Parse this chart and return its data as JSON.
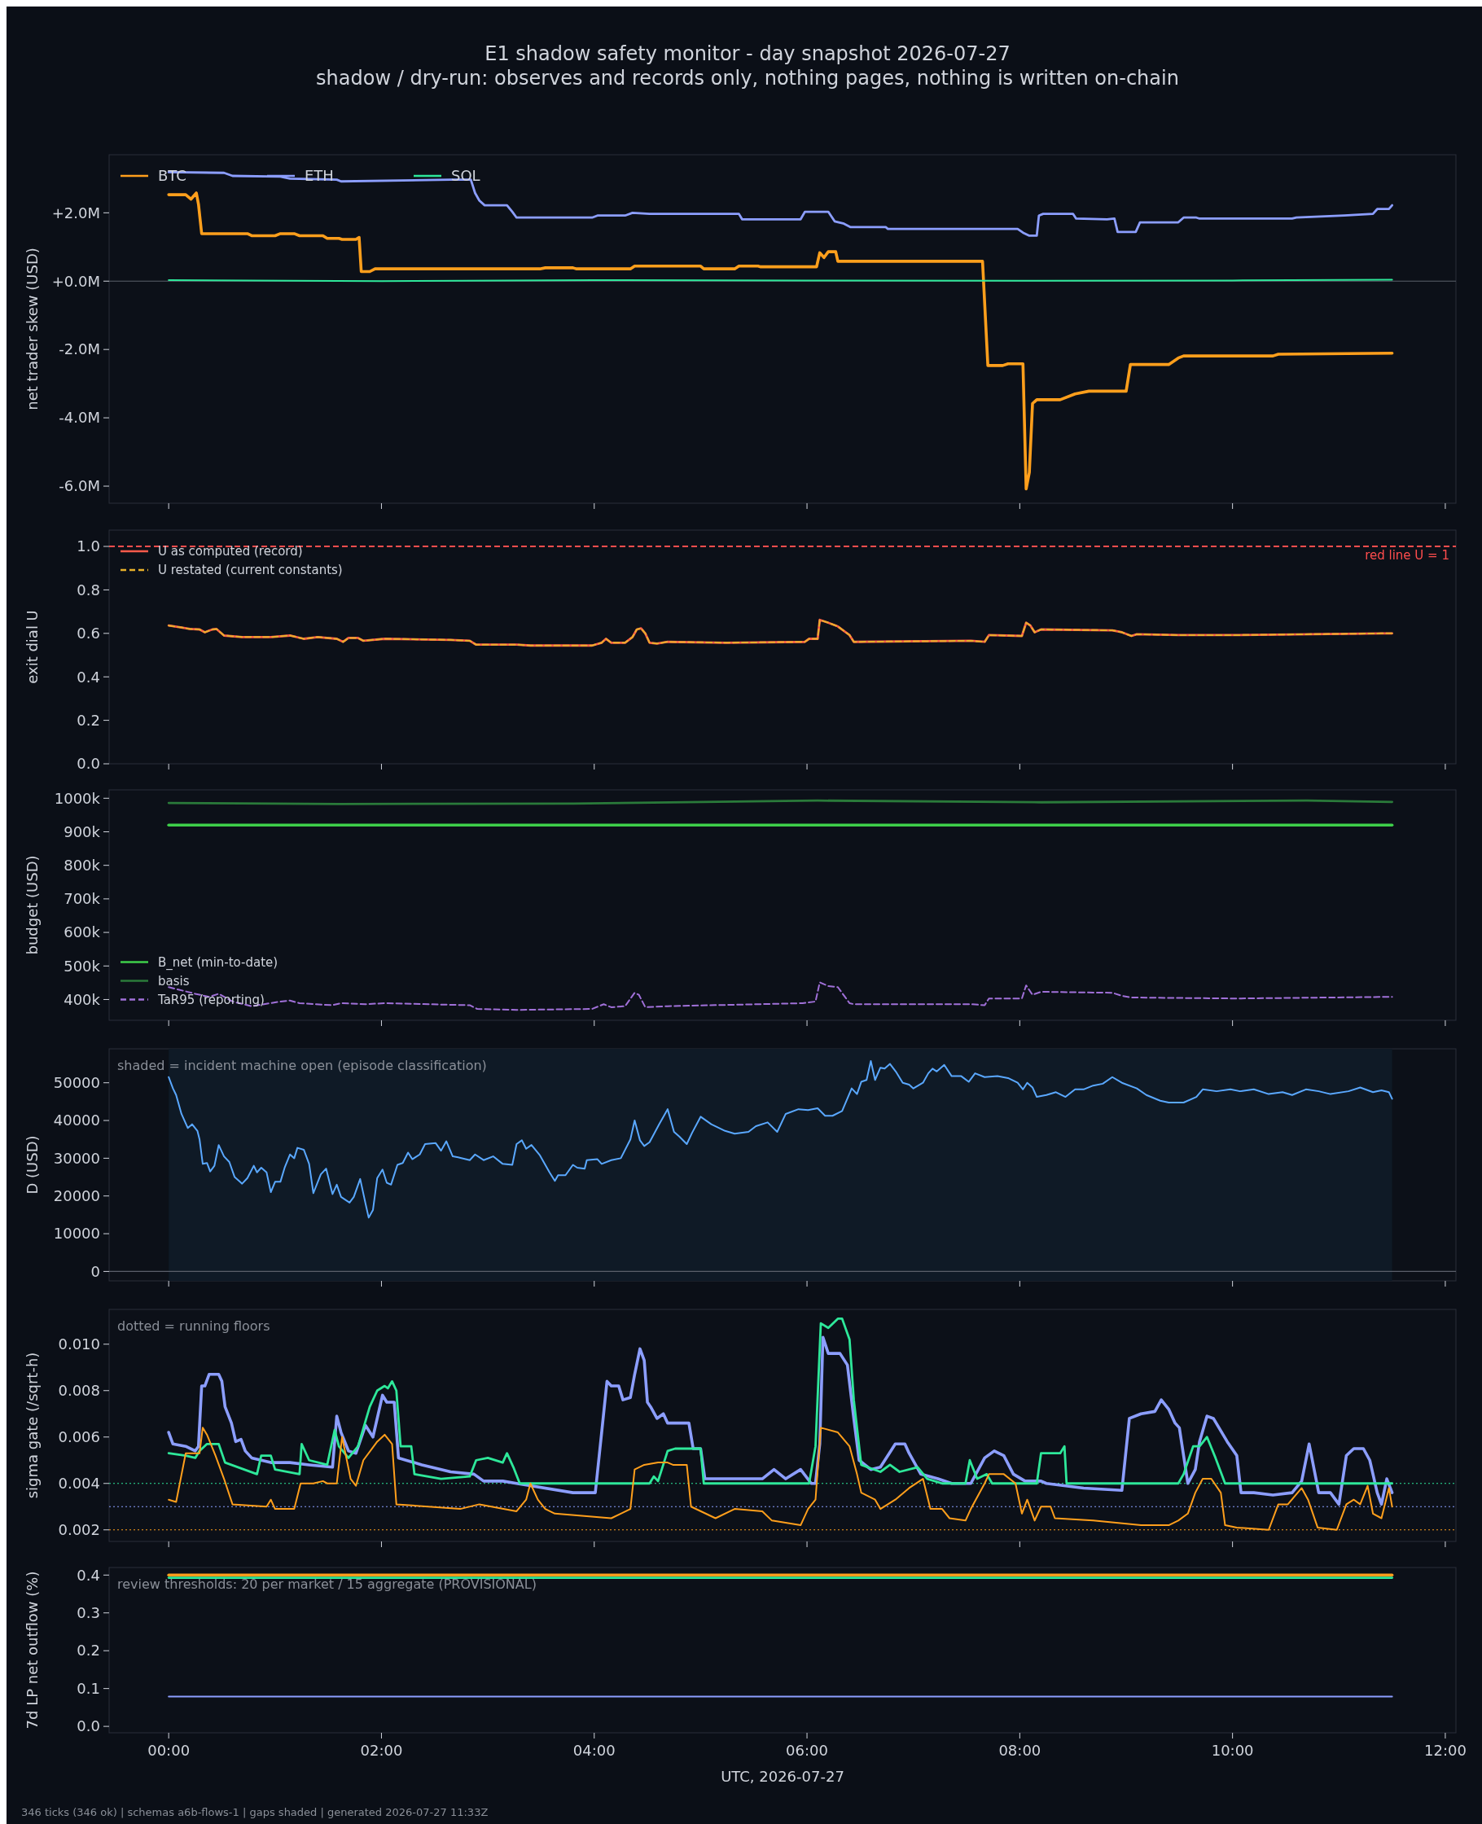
{
  "chart_data": [
    {
      "type": "line",
      "title": "E1 shadow safety monitor - day snapshot 2026-07-27",
      "subtitle": "shadow / dry-run: observes and records only, nothing pages, nothing is written on-chain",
      "ylabel": "net trader skew (USD)",
      "legend": "top left",
      "tick_labels": "y",
      "xlim": [
        -0.56,
        12.1
      ],
      "xticks": [
        {
          "value": 0,
          "label": null
        },
        {
          "value": 2,
          "label": null
        },
        {
          "value": 4,
          "label": null
        },
        {
          "value": 6,
          "label": null
        },
        {
          "value": 8,
          "label": null
        },
        {
          "value": 10,
          "label": null
        },
        {
          "value": 12,
          "label": null
        }
      ],
      "ylim": [
        -6.5,
        3.7
      ],
      "yticks": [
        {
          "value": -6,
          "label": "-6.0M"
        },
        {
          "value": -4,
          "label": "-4.0M"
        },
        {
          "value": -2,
          "label": "-2.0M"
        },
        {
          "value": 0,
          "label": "+0.0M"
        },
        {
          "value": 2,
          "label": "+2.0M"
        }
      ],
      "ref_lines": [
        {
          "axis": "y",
          "value": 0,
          "color": "#5a5f6a",
          "line_style": "solid"
        }
      ],
      "series": [
        {
          "name": "BTC",
          "color": "#ff9f1c",
          "x": [
            0,
            0.16,
            0.21,
            0.26,
            0.28,
            0.31,
            0.74,
            0.78,
            1.0,
            1.05,
            1.18,
            1.23,
            1.45,
            1.49,
            1.6,
            1.63,
            1.76,
            1.79,
            1.81,
            1.89,
            1.94,
            3.49,
            3.54,
            3.8,
            3.83,
            4.34,
            4.38,
            5.0,
            5.03,
            5.32,
            5.36,
            5.54,
            5.56,
            6.09,
            6.12,
            6.16,
            6.2,
            6.27,
            6.29,
            7.65,
            7.7,
            7.84,
            7.89,
            8.03,
            8.06,
            8.09,
            8.12,
            8.16,
            8.38,
            8.52,
            8.65,
            9.0,
            9.04,
            9.4,
            9.49,
            9.54,
            10.38,
            10.43,
            11.5
          ],
          "values": [
            2.53,
            2.53,
            2.4,
            2.58,
            2.25,
            1.39,
            1.39,
            1.33,
            1.33,
            1.39,
            1.39,
            1.33,
            1.33,
            1.25,
            1.25,
            1.22,
            1.22,
            1.28,
            0.28,
            0.28,
            0.36,
            0.36,
            0.39,
            0.39,
            0.36,
            0.36,
            0.44,
            0.44,
            0.36,
            0.36,
            0.44,
            0.44,
            0.42,
            0.42,
            0.83,
            0.69,
            0.86,
            0.86,
            0.58,
            0.58,
            -2.47,
            -2.47,
            -2.42,
            -2.42,
            -6.08,
            -5.6,
            -3.58,
            -3.47,
            -3.47,
            -3.3,
            -3.22,
            -3.22,
            -2.44,
            -2.44,
            -2.25,
            -2.19,
            -2.19,
            -2.14,
            -2.11
          ]
        },
        {
          "name": "ETH",
          "color": "#8c9eff",
          "x": [
            0,
            0.52,
            0.6,
            1.05,
            1.14,
            1.58,
            1.62,
            2.65,
            2.84,
            2.88,
            2.92,
            2.97,
            3.18,
            3.23,
            3.27,
            3.98,
            4.03,
            4.29,
            4.36,
            4.52,
            5.36,
            5.39,
            5.94,
            5.98,
            6.2,
            6.26,
            6.34,
            6.41,
            6.74,
            6.76,
            7.98,
            8.03,
            8.09,
            8.16,
            8.18,
            8.22,
            8.5,
            8.53,
            8.82,
            8.89,
            8.92,
            9.09,
            9.13,
            9.49,
            9.54,
            9.66,
            9.69,
            10.56,
            10.6,
            11.05,
            11.32,
            11.36,
            11.47,
            11.5
          ],
          "values": [
            3.19,
            3.17,
            3.08,
            3.06,
            3.0,
            2.97,
            2.92,
            2.97,
            2.97,
            2.58,
            2.36,
            2.22,
            2.22,
            2.03,
            1.86,
            1.86,
            1.92,
            1.92,
            2.0,
            1.97,
            1.97,
            1.81,
            1.81,
            2.03,
            2.03,
            1.75,
            1.69,
            1.58,
            1.58,
            1.53,
            1.53,
            1.42,
            1.33,
            1.33,
            1.92,
            1.97,
            1.97,
            1.83,
            1.81,
            1.83,
            1.44,
            1.44,
            1.72,
            1.72,
            1.86,
            1.86,
            1.83,
            1.83,
            1.86,
            1.92,
            1.97,
            2.11,
            2.11,
            2.22
          ]
        },
        {
          "name": "SOL",
          "color": "#2ee89a",
          "x": [
            0,
            2,
            4,
            6,
            8,
            10,
            11.5
          ],
          "values": [
            0.03,
            0.0,
            0.03,
            0.02,
            0.01,
            0.02,
            0.04
          ]
        }
      ]
    },
    {
      "type": "line",
      "ylabel": "exit dial U",
      "legend": "top left",
      "tick_labels": "y",
      "xlim": [
        -0.56,
        12.1
      ],
      "xticks": [
        {
          "value": 0,
          "label": null
        },
        {
          "value": 2,
          "label": null
        },
        {
          "value": 4,
          "label": null
        },
        {
          "value": 6,
          "label": null
        },
        {
          "value": 8,
          "label": null
        },
        {
          "value": 10,
          "label": null
        },
        {
          "value": 12,
          "label": null
        }
      ],
      "ylim": [
        0,
        1.075
      ],
      "yticks": [
        {
          "value": 0,
          "label": "0.0"
        },
        {
          "value": 0.2,
          "label": "0.2"
        },
        {
          "value": 0.4,
          "label": "0.4"
        },
        {
          "value": 0.6,
          "label": "0.6"
        },
        {
          "value": 0.8,
          "label": "0.8"
        },
        {
          "value": 1,
          "label": "1.0"
        }
      ],
      "ref_lines": [
        {
          "axis": "y",
          "value": 1,
          "label": "red line U = 1",
          "color": "#ff4d4d",
          "line_style": "dashed"
        }
      ],
      "series": [
        {
          "name": "U as computed (record)",
          "color": "#ff5a4a",
          "line_style": "solid",
          "x": [
            0,
            0.12,
            0.2,
            0.29,
            0.34,
            0.41,
            0.45,
            0.52,
            0.69,
            0.96,
            1.14,
            1.27,
            1.4,
            1.58,
            1.64,
            1.69,
            1.78,
            1.83,
            2.03,
            2.65,
            2.83,
            2.89,
            3.27,
            3.4,
            3.98,
            4.07,
            4.11,
            4.16,
            4.29,
            4.36,
            4.4,
            4.44,
            4.48,
            4.52,
            4.59,
            4.69,
            5.24,
            5.98,
            6.02,
            6.1,
            6.12,
            6.2,
            6.29,
            6.4,
            6.44,
            7.54,
            7.67,
            7.71,
            8.02,
            8.06,
            8.1,
            8.14,
            8.2,
            8.87,
            8.96,
            9.05,
            9.1,
            9.49,
            10.03,
            11.4,
            11.5
          ],
          "values": [
            0.636,
            0.627,
            0.62,
            0.618,
            0.605,
            0.618,
            0.62,
            0.59,
            0.583,
            0.583,
            0.59,
            0.575,
            0.583,
            0.575,
            0.561,
            0.579,
            0.579,
            0.566,
            0.575,
            0.57,
            0.566,
            0.548,
            0.548,
            0.544,
            0.544,
            0.557,
            0.575,
            0.557,
            0.557,
            0.583,
            0.618,
            0.623,
            0.6,
            0.557,
            0.553,
            0.561,
            0.557,
            0.561,
            0.575,
            0.575,
            0.662,
            0.649,
            0.632,
            0.592,
            0.561,
            0.566,
            0.561,
            0.592,
            0.588,
            0.649,
            0.636,
            0.605,
            0.618,
            0.614,
            0.605,
            0.588,
            0.596,
            0.592,
            0.592,
            0.6,
            0.6
          ]
        },
        {
          "name": "U restated (current constants)",
          "color": "#e8b02a",
          "line_style": "dashed",
          "x": [
            0,
            0.12,
            0.2,
            0.29,
            0.34,
            0.41,
            0.45,
            0.52,
            0.69,
            0.96,
            1.14,
            1.27,
            1.4,
            1.58,
            1.64,
            1.69,
            1.78,
            1.83,
            2.03,
            2.65,
            2.83,
            2.89,
            3.27,
            3.4,
            3.98,
            4.07,
            4.11,
            4.16,
            4.29,
            4.36,
            4.4,
            4.44,
            4.48,
            4.52,
            4.59,
            4.69,
            5.24,
            5.98,
            6.02,
            6.1,
            6.12,
            6.2,
            6.29,
            6.4,
            6.44,
            7.54,
            7.67,
            7.71,
            8.02,
            8.06,
            8.1,
            8.14,
            8.2,
            8.87,
            8.96,
            9.05,
            9.1,
            9.49,
            10.03,
            11.4,
            11.5
          ],
          "values": [
            0.636,
            0.627,
            0.62,
            0.618,
            0.605,
            0.618,
            0.62,
            0.59,
            0.583,
            0.583,
            0.59,
            0.575,
            0.583,
            0.575,
            0.561,
            0.579,
            0.579,
            0.566,
            0.575,
            0.57,
            0.566,
            0.548,
            0.548,
            0.544,
            0.544,
            0.557,
            0.575,
            0.557,
            0.557,
            0.583,
            0.618,
            0.623,
            0.6,
            0.557,
            0.553,
            0.561,
            0.557,
            0.561,
            0.575,
            0.575,
            0.662,
            0.649,
            0.632,
            0.592,
            0.561,
            0.566,
            0.561,
            0.592,
            0.588,
            0.649,
            0.636,
            0.605,
            0.618,
            0.614,
            0.605,
            0.588,
            0.596,
            0.592,
            0.592,
            0.6,
            0.6
          ]
        }
      ]
    },
    {
      "type": "line",
      "ylabel": "budget (USD)",
      "legend": "bottom left",
      "tick_labels": "y",
      "xlim": [
        -0.56,
        12.1
      ],
      "xticks": [
        {
          "value": 0,
          "label": null
        },
        {
          "value": 2,
          "label": null
        },
        {
          "value": 4,
          "label": null
        },
        {
          "value": 6,
          "label": null
        },
        {
          "value": 8,
          "label": null
        },
        {
          "value": 10,
          "label": null
        },
        {
          "value": 12,
          "label": null
        }
      ],
      "ylim": [
        338,
        1025
      ],
      "yticks": [
        {
          "value": 400,
          "label": "400k"
        },
        {
          "value": 500,
          "label": "500k"
        },
        {
          "value": 600,
          "label": "600k"
        },
        {
          "value": 700,
          "label": "700k"
        },
        {
          "value": 800,
          "label": "800k"
        },
        {
          "value": 900,
          "label": "900k"
        },
        {
          "value": 1000,
          "label": "1000k"
        }
      ],
      "series": [
        {
          "name": "B_net (min-to-date)",
          "color": "#3ecf4a",
          "line_style": "solid",
          "x": [
            0,
            11.5
          ],
          "values": [
            920,
            920
          ]
        },
        {
          "name": "basis",
          "color": "#2a7a3a",
          "line_style": "solid",
          "x": [
            0,
            1.6,
            3.8,
            6.1,
            8.2,
            10.7,
            11.5
          ],
          "values": [
            986,
            983,
            984,
            993,
            988,
            993,
            989
          ]
        },
        {
          "name": "TaR95 (reporting)",
          "color": "#a070d8",
          "line_style": "dashed",
          "x": [
            0,
            0.25,
            0.38,
            0.47,
            0.6,
            0.78,
            1.05,
            1.14,
            1.23,
            1.54,
            1.62,
            1.85,
            2.03,
            2.83,
            2.9,
            3.27,
            3.98,
            4.09,
            4.16,
            4.29,
            4.38,
            4.42,
            4.48,
            4.69,
            5.96,
            6.08,
            6.12,
            6.2,
            6.29,
            6.4,
            6.44,
            7.54,
            7.67,
            7.71,
            8.02,
            8.06,
            8.12,
            8.2,
            8.87,
            8.96,
            9.05,
            10.03,
            11.5
          ],
          "values": [
            437,
            417,
            408,
            417,
            394,
            380,
            394,
            397,
            389,
            383,
            389,
            386,
            389,
            383,
            372,
            369,
            372,
            386,
            377,
            380,
            420,
            414,
            377,
            380,
            389,
            394,
            451,
            440,
            437,
            389,
            386,
            386,
            383,
            403,
            403,
            442,
            414,
            423,
            420,
            411,
            406,
            403,
            408
          ]
        }
      ]
    },
    {
      "type": "line",
      "ylabel": "D (USD)",
      "tick_labels": "y",
      "annotations": [
        "shaded = incident machine open (episode classification)"
      ],
      "xlim": [
        -0.56,
        12.1
      ],
      "xticks": [
        {
          "value": 0,
          "label": null
        },
        {
          "value": 2,
          "label": null
        },
        {
          "value": 4,
          "label": null
        },
        {
          "value": 6,
          "label": null
        },
        {
          "value": 8,
          "label": null
        },
        {
          "value": 10,
          "label": null
        },
        {
          "value": 12,
          "label": null
        }
      ],
      "ylim": [
        -2500,
        59000
      ],
      "yticks": [
        0,
        10000,
        20000,
        30000,
        40000,
        50000
      ],
      "ref_lines": [
        {
          "axis": "y",
          "value": 0,
          "color": "#5a5f6a",
          "line_style": "solid"
        }
      ],
      "bands": [
        {
          "axis": "x",
          "from": 0,
          "to": 11.5,
          "color": "#0f1a26"
        }
      ],
      "series": [
        {
          "color": "#5aa8ff",
          "x": [
            0,
            0.04,
            0.07,
            0.12,
            0.18,
            0.22,
            0.27,
            0.29,
            0.32,
            0.36,
            0.39,
            0.43,
            0.47,
            0.52,
            0.57,
            0.62,
            0.67,
            0.69,
            0.74,
            0.8,
            0.83,
            0.87,
            0.92,
            0.96,
            1.0,
            1.05,
            1.09,
            1.14,
            1.18,
            1.21,
            1.27,
            1.32,
            1.36,
            1.43,
            1.48,
            1.54,
            1.58,
            1.62,
            1.7,
            1.74,
            1.8,
            1.85,
            1.88,
            1.92,
            1.96,
            2.01,
            2.05,
            2.09,
            2.15,
            2.2,
            2.25,
            2.29,
            2.36,
            2.41,
            2.51,
            2.56,
            2.61,
            2.67,
            2.72,
            2.83,
            2.88,
            2.96,
            3.05,
            3.14,
            3.23,
            3.27,
            3.32,
            3.36,
            3.41,
            3.49,
            3.58,
            3.63,
            3.66,
            3.73,
            3.8,
            3.84,
            3.91,
            3.93,
            4.03,
            4.07,
            4.16,
            4.25,
            4.34,
            4.38,
            4.43,
            4.47,
            4.52,
            4.61,
            4.69,
            4.75,
            4.8,
            4.87,
            4.92,
            5.0,
            5.1,
            5.23,
            5.32,
            5.45,
            5.52,
            5.63,
            5.72,
            5.8,
            5.92,
            6.01,
            6.1,
            6.17,
            6.24,
            6.33,
            6.42,
            6.47,
            6.51,
            6.56,
            6.6,
            6.64,
            6.69,
            6.73,
            6.78,
            6.84,
            6.9,
            6.96,
            7.0,
            7.09,
            7.14,
            7.18,
            7.22,
            7.29,
            7.36,
            7.45,
            7.52,
            7.58,
            7.67,
            7.79,
            7.89,
            7.98,
            8.03,
            8.07,
            8.12,
            8.16,
            8.25,
            8.34,
            8.43,
            8.52,
            8.6,
            8.69,
            8.78,
            8.87,
            8.96,
            9.1,
            9.19,
            9.32,
            9.4,
            9.54,
            9.66,
            9.72,
            9.85,
            9.98,
            10.07,
            10.2,
            10.34,
            10.47,
            10.56,
            10.69,
            10.81,
            10.92,
            11.09,
            11.2,
            11.32,
            11.4,
            11.47,
            11.5
          ],
          "values": [
            51500,
            48500,
            46750,
            41750,
            38000,
            39000,
            37250,
            35000,
            28500,
            28750,
            26500,
            28000,
            33500,
            30500,
            29000,
            25000,
            23750,
            23250,
            24750,
            28000,
            26250,
            27500,
            26250,
            21000,
            23750,
            23750,
            27500,
            31000,
            30000,
            32750,
            32250,
            28500,
            20750,
            25750,
            27250,
            20500,
            23000,
            19750,
            18250,
            19750,
            24500,
            18000,
            14250,
            16250,
            24750,
            27000,
            23500,
            23000,
            28250,
            28750,
            31500,
            29750,
            31000,
            33750,
            34000,
            32000,
            34500,
            30500,
            30250,
            29500,
            31000,
            29500,
            30500,
            28500,
            28250,
            33750,
            34750,
            32500,
            33500,
            30750,
            26250,
            24000,
            25500,
            25500,
            28250,
            27500,
            27250,
            29500,
            29750,
            28500,
            29500,
            30000,
            35000,
            40000,
            34750,
            33250,
            34250,
            39000,
            43000,
            37000,
            35750,
            33750,
            36750,
            41000,
            39000,
            37250,
            36500,
            37000,
            38500,
            39500,
            37000,
            41750,
            43000,
            42750,
            43250,
            41250,
            41250,
            42500,
            48500,
            47000,
            50250,
            50750,
            55750,
            50750,
            54000,
            53750,
            55000,
            52750,
            50000,
            49500,
            48500,
            50000,
            52500,
            53750,
            53000,
            54750,
            51750,
            51750,
            50250,
            52500,
            51500,
            51750,
            51250,
            50000,
            48250,
            50000,
            48750,
            46250,
            46750,
            47500,
            46250,
            48250,
            48250,
            49250,
            49750,
            51500,
            50000,
            48500,
            46750,
            45250,
            44750,
            44750,
            46250,
            48250,
            47750,
            48250,
            47750,
            48250,
            47000,
            47500,
            46750,
            48250,
            47750,
            47000,
            47750,
            48750,
            47500,
            48000,
            47500,
            45750
          ]
        }
      ]
    },
    {
      "type": "line",
      "ylabel": "sigma gate (/sqrt-h)",
      "tick_labels": "y",
      "annotations": [
        "dotted = running floors"
      ],
      "xlim": [
        -0.56,
        12.1
      ],
      "xticks": [
        {
          "value": 0,
          "label": null
        },
        {
          "value": 2,
          "label": null
        },
        {
          "value": 4,
          "label": null
        },
        {
          "value": 6,
          "label": null
        },
        {
          "value": 8,
          "label": null
        },
        {
          "value": 10,
          "label": null
        },
        {
          "value": 12,
          "label": null
        }
      ],
      "ylim": [
        0.0015,
        0.0115
      ],
      "yticks": [
        {
          "value": 0.002,
          "label": "0.002"
        },
        {
          "value": 0.004,
          "label": "0.004"
        },
        {
          "value": 0.006,
          "label": "0.006"
        },
        {
          "value": 0.008,
          "label": "0.008"
        },
        {
          "value": 0.01,
          "label": "0.010"
        }
      ],
      "ref_lines": [
        {
          "axis": "y",
          "value": 0.004,
          "color": "#2ee89a",
          "line_style": "dotted"
        },
        {
          "axis": "y",
          "value": 0.003,
          "color": "#8c9eff",
          "line_style": "dotted"
        },
        {
          "axis": "y",
          "value": 0.002,
          "color": "#ff9f1c",
          "line_style": "dotted"
        }
      ],
      "series": [
        {
          "color": "#8c9eff",
          "x": [
            0,
            0.04,
            0.16,
            0.25,
            0.28,
            0.31,
            0.34,
            0.38,
            0.47,
            0.5,
            0.53,
            0.59,
            0.63,
            0.68,
            0.72,
            0.78,
            0.96,
            1.14,
            1.32,
            1.54,
            1.58,
            1.62,
            1.69,
            1.76,
            1.85,
            1.92,
            2.01,
            2.05,
            2.12,
            2.16,
            2.38,
            2.65,
            2.87,
            2.96,
            3.14,
            3.27,
            3.8,
            3.98,
            4.01,
            4.07,
            4.12,
            4.16,
            4.23,
            4.27,
            4.34,
            4.38,
            4.43,
            4.47,
            4.5,
            4.53,
            4.59,
            4.65,
            4.69,
            4.89,
            4.93,
            5.0,
            5.04,
            5.58,
            5.69,
            5.8,
            5.94,
            6.04,
            6.08,
            6.12,
            6.15,
            6.2,
            6.31,
            6.38,
            6.44,
            6.49,
            6.6,
            6.69,
            6.83,
            6.92,
            6.96,
            7.07,
            7.23,
            7.36,
            7.54,
            7.67,
            7.76,
            7.85,
            7.94,
            8.05,
            8.2,
            8.25,
            8.6,
            8.96,
            9.03,
            9.14,
            9.27,
            9.33,
            9.4,
            9.46,
            9.5,
            9.58,
            9.65,
            9.69,
            9.76,
            9.82,
            9.95,
            10.04,
            10.08,
            10.2,
            10.38,
            10.56,
            10.65,
            10.72,
            10.81,
            10.92,
            11.0,
            11.07,
            11.14,
            11.23,
            11.29,
            11.36,
            11.4,
            11.45,
            11.5
          ],
          "values": [
            0.0062,
            0.0057,
            0.0056,
            0.0054,
            0.0056,
            0.0082,
            0.0082,
            0.0087,
            0.0087,
            0.0084,
            0.0073,
            0.0066,
            0.0058,
            0.0059,
            0.0054,
            0.0051,
            0.0049,
            0.0049,
            0.0048,
            0.0047,
            0.0069,
            0.0062,
            0.0054,
            0.0053,
            0.0065,
            0.006,
            0.0078,
            0.0075,
            0.0075,
            0.0051,
            0.0048,
            0.0045,
            0.0044,
            0.0041,
            0.0041,
            0.004,
            0.0036,
            0.0036,
            0.0036,
            0.0062,
            0.0084,
            0.0082,
            0.0082,
            0.0076,
            0.0077,
            0.0087,
            0.0098,
            0.0093,
            0.0075,
            0.0073,
            0.0068,
            0.007,
            0.0066,
            0.0066,
            0.0055,
            0.0055,
            0.0042,
            0.0042,
            0.0046,
            0.0042,
            0.0046,
            0.004,
            0.004,
            0.0057,
            0.0103,
            0.0096,
            0.0096,
            0.0091,
            0.0068,
            0.005,
            0.0046,
            0.0047,
            0.0057,
            0.0057,
            0.0053,
            0.0044,
            0.0042,
            0.004,
            0.004,
            0.0051,
            0.0054,
            0.0052,
            0.0044,
            0.0041,
            0.0041,
            0.004,
            0.0038,
            0.0037,
            0.0068,
            0.007,
            0.0071,
            0.0076,
            0.0072,
            0.0066,
            0.0064,
            0.004,
            0.0046,
            0.0058,
            0.0069,
            0.0068,
            0.0058,
            0.0052,
            0.0036,
            0.0036,
            0.0035,
            0.0036,
            0.0041,
            0.0057,
            0.0036,
            0.0036,
            0.0031,
            0.0052,
            0.0055,
            0.0055,
            0.005,
            0.0036,
            0.0031,
            0.0042,
            0.0036
          ]
        },
        {
          "color": "#2ee89a",
          "x": [
            0,
            0.16,
            0.25,
            0.29,
            0.36,
            0.47,
            0.53,
            0.83,
            0.87,
            0.96,
            1.0,
            1.23,
            1.25,
            1.32,
            1.49,
            1.56,
            1.6,
            1.69,
            1.78,
            1.89,
            1.96,
            2.03,
            2.06,
            2.1,
            2.14,
            2.18,
            2.28,
            2.31,
            2.56,
            2.83,
            2.89,
            3.0,
            3.14,
            3.18,
            3.24,
            3.3,
            4.52,
            4.56,
            4.6,
            4.69,
            4.76,
            5.0,
            5.03,
            6.02,
            6.08,
            6.13,
            6.2,
            6.29,
            6.33,
            6.4,
            6.44,
            6.51,
            6.69,
            6.78,
            6.87,
            7.04,
            7.13,
            7.27,
            7.49,
            7.53,
            7.6,
            7.69,
            7.74,
            8.16,
            8.2,
            8.38,
            8.42,
            8.44,
            9.49,
            9.54,
            9.63,
            9.69,
            9.76,
            9.84,
            9.93,
            11.5
          ],
          "values": [
            0.0053,
            0.0052,
            0.0051,
            0.0054,
            0.0057,
            0.0057,
            0.0049,
            0.0044,
            0.0052,
            0.0052,
            0.0046,
            0.0044,
            0.0057,
            0.005,
            0.0048,
            0.0063,
            0.0056,
            0.0051,
            0.0056,
            0.0073,
            0.008,
            0.0082,
            0.0081,
            0.0084,
            0.008,
            0.0056,
            0.0056,
            0.0044,
            0.0042,
            0.0043,
            0.005,
            0.0051,
            0.0049,
            0.0053,
            0.0047,
            0.004,
            0.004,
            0.0043,
            0.0041,
            0.0054,
            0.0055,
            0.0055,
            0.004,
            0.004,
            0.0056,
            0.0109,
            0.0107,
            0.0111,
            0.0111,
            0.0102,
            0.0076,
            0.0048,
            0.0045,
            0.0048,
            0.0045,
            0.0047,
            0.0042,
            0.004,
            0.004,
            0.005,
            0.0042,
            0.0044,
            0.004,
            0.004,
            0.0053,
            0.0053,
            0.0056,
            0.004,
            0.004,
            0.0044,
            0.0056,
            0.0056,
            0.006,
            0.0051,
            0.004,
            0.004
          ]
        },
        {
          "color": "#ff9f1c",
          "x": [
            0,
            0.07,
            0.16,
            0.29,
            0.32,
            0.36,
            0.44,
            0.52,
            0.6,
            0.92,
            0.96,
            1.0,
            1.18,
            1.24,
            1.36,
            1.45,
            1.49,
            1.58,
            1.63,
            1.71,
            1.76,
            1.83,
            1.96,
            2.03,
            2.1,
            2.14,
            2.74,
            2.92,
            3.27,
            3.36,
            3.4,
            3.47,
            3.54,
            3.63,
            4.16,
            4.25,
            4.34,
            4.38,
            4.47,
            4.6,
            4.69,
            4.74,
            4.87,
            4.91,
            5.14,
            5.32,
            5.58,
            5.67,
            5.94,
            6.01,
            6.08,
            6.13,
            6.29,
            6.4,
            6.47,
            6.51,
            6.64,
            6.69,
            6.83,
            6.96,
            7.09,
            7.16,
            7.27,
            7.34,
            7.49,
            7.54,
            7.67,
            7.71,
            7.85,
            7.96,
            8.02,
            8.07,
            8.14,
            8.2,
            8.29,
            8.33,
            8.69,
            9.14,
            9.4,
            9.49,
            9.58,
            9.65,
            9.72,
            9.8,
            9.89,
            9.93,
            10.04,
            10.34,
            10.43,
            10.52,
            10.65,
            10.71,
            10.8,
            10.98,
            11.07,
            11.14,
            11.2,
            11.27,
            11.32,
            11.4,
            11.47,
            11.5
          ],
          "values": [
            0.0033,
            0.0032,
            0.0053,
            0.0053,
            0.0064,
            0.0061,
            0.0052,
            0.0042,
            0.0031,
            0.003,
            0.0033,
            0.0029,
            0.0029,
            0.004,
            0.004,
            0.0041,
            0.004,
            0.004,
            0.006,
            0.0042,
            0.0039,
            0.005,
            0.0058,
            0.0061,
            0.0057,
            0.0031,
            0.0029,
            0.0031,
            0.0028,
            0.0033,
            0.004,
            0.0033,
            0.0029,
            0.0027,
            0.0025,
            0.0027,
            0.0029,
            0.0046,
            0.0048,
            0.0049,
            0.0049,
            0.0048,
            0.0048,
            0.003,
            0.0025,
            0.0029,
            0.0028,
            0.0024,
            0.0022,
            0.0029,
            0.0033,
            0.0064,
            0.0062,
            0.0056,
            0.0044,
            0.0036,
            0.0033,
            0.0029,
            0.0033,
            0.0038,
            0.0042,
            0.0029,
            0.0029,
            0.0025,
            0.0024,
            0.0029,
            0.004,
            0.0044,
            0.0044,
            0.004,
            0.0027,
            0.0033,
            0.0024,
            0.003,
            0.003,
            0.0025,
            0.0024,
            0.0022,
            0.0022,
            0.0024,
            0.0027,
            0.0036,
            0.0042,
            0.0042,
            0.0036,
            0.0022,
            0.0021,
            0.002,
            0.0031,
            0.0031,
            0.0038,
            0.0033,
            0.0021,
            0.002,
            0.0031,
            0.0033,
            0.0031,
            0.0039,
            0.0027,
            0.0025,
            0.0038,
            0.003
          ]
        }
      ]
    },
    {
      "type": "line",
      "xlabel": "UTC, 2026-07-27",
      "ylabel": "7d LP net outflow (%)",
      "annotations": [
        "review thresholds: 20 per market / 15 aggregate (PROVISIONAL)",
        "346 ticks (346 ok) | schemas a6b-flows-1 | gaps shaded | generated 2026-07-27 11:33Z"
      ],
      "xlim": [
        -0.56,
        12.1
      ],
      "xticks": [
        {
          "value": 0,
          "label": "00:00"
        },
        {
          "value": 2,
          "label": "02:00"
        },
        {
          "value": 4,
          "label": "04:00"
        },
        {
          "value": 6,
          "label": "06:00"
        },
        {
          "value": 8,
          "label": "08:00"
        },
        {
          "value": 10,
          "label": "10:00"
        },
        {
          "value": 12,
          "label": "12:00"
        }
      ],
      "ylim": [
        -0.017,
        0.42
      ],
      "yticks": [
        {
          "value": 0,
          "label": "0.0"
        },
        {
          "value": 0.1,
          "label": "0.1"
        },
        {
          "value": 0.2,
          "label": "0.2"
        },
        {
          "value": 0.3,
          "label": "0.3"
        },
        {
          "value": 0.4,
          "label": "0.4"
        }
      ],
      "series": [
        {
          "color": "#ff9f1c",
          "x": [
            0,
            11.5
          ],
          "values": [
            0.4,
            0.4
          ]
        },
        {
          "color": "#2ee89a",
          "x": [
            0,
            11.5
          ],
          "values": [
            0.393,
            0.393
          ]
        },
        {
          "color": "#8c9eff",
          "x": [
            0,
            11.5
          ],
          "values": [
            0.079,
            0.079
          ]
        }
      ]
    }
  ]
}
